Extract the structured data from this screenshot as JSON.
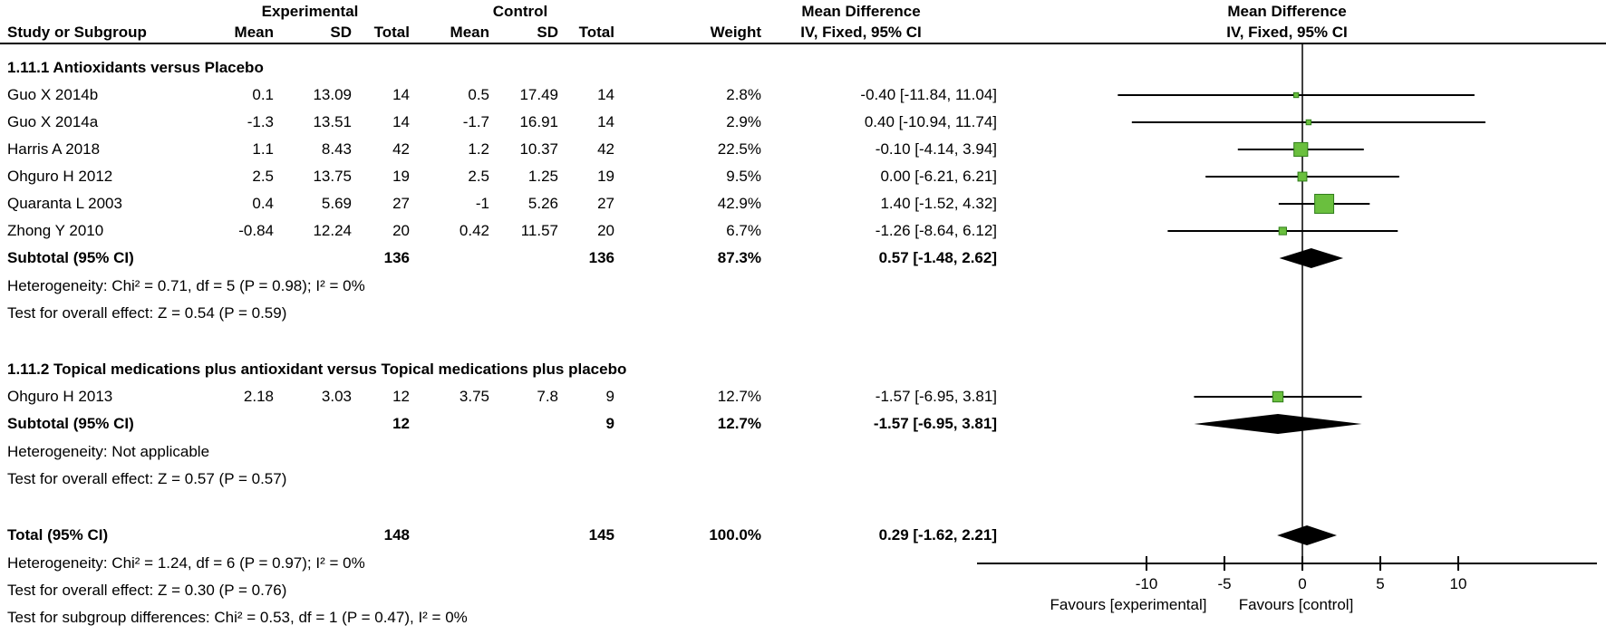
{
  "header": {
    "group_experimental": "Experimental",
    "group_control": "Control",
    "md_left": "Mean Difference",
    "md_right": "Mean Difference",
    "col_study": "Study or Subgroup",
    "col_mean": "Mean",
    "col_sd": "SD",
    "col_total": "Total",
    "col_weight": "Weight",
    "ci_method_left": "IV, Fixed, 95% CI",
    "ci_method_right": "IV, Fixed, 95% CI"
  },
  "sections": [
    {
      "title": "1.11.1 Antioxidants versus Placebo",
      "studies": [
        {
          "name": "Guo X 2014b",
          "mean_e": "0.1",
          "sd_e": "13.09",
          "total_e": "14",
          "mean_c": "0.5",
          "sd_c": "17.49",
          "total_c": "14",
          "weight": "2.8%",
          "ci_text": "-0.40 [-11.84, 11.04]",
          "md": -0.4,
          "lo": -11.84,
          "hi": 11.04,
          "w": 2.8
        },
        {
          "name": "Guo X 2014a",
          "mean_e": "-1.3",
          "sd_e": "13.51",
          "total_e": "14",
          "mean_c": "-1.7",
          "sd_c": "16.91",
          "total_c": "14",
          "weight": "2.9%",
          "ci_text": "0.40 [-10.94, 11.74]",
          "md": 0.4,
          "lo": -10.94,
          "hi": 11.74,
          "w": 2.9
        },
        {
          "name": "Harris A 2018",
          "mean_e": "1.1",
          "sd_e": "8.43",
          "total_e": "42",
          "mean_c": "1.2",
          "sd_c": "10.37",
          "total_c": "42",
          "weight": "22.5%",
          "ci_text": "-0.10 [-4.14, 3.94]",
          "md": -0.1,
          "lo": -4.14,
          "hi": 3.94,
          "w": 22.5
        },
        {
          "name": "Ohguro H 2012",
          "mean_e": "2.5",
          "sd_e": "13.75",
          "total_e": "19",
          "mean_c": "2.5",
          "sd_c": "1.25",
          "total_c": "19",
          "weight": "9.5%",
          "ci_text": "0.00 [-6.21, 6.21]",
          "md": 0.0,
          "lo": -6.21,
          "hi": 6.21,
          "w": 9.5
        },
        {
          "name": "Quaranta L 2003",
          "mean_e": "0.4",
          "sd_e": "5.69",
          "total_e": "27",
          "mean_c": "-1",
          "sd_c": "5.26",
          "total_c": "27",
          "weight": "42.9%",
          "ci_text": "1.40 [-1.52, 4.32]",
          "md": 1.4,
          "lo": -1.52,
          "hi": 4.32,
          "w": 42.9
        },
        {
          "name": "Zhong Y 2010",
          "mean_e": "-0.84",
          "sd_e": "12.24",
          "total_e": "20",
          "mean_c": "0.42",
          "sd_c": "11.57",
          "total_c": "20",
          "weight": "6.7%",
          "ci_text": "-1.26 [-8.64, 6.12]",
          "md": -1.26,
          "lo": -8.64,
          "hi": 6.12,
          "w": 6.7
        }
      ],
      "subtotal": {
        "label": "Subtotal (95% CI)",
        "total_e": "136",
        "total_c": "136",
        "weight": "87.3%",
        "ci_text": "0.57 [-1.48, 2.62]",
        "md": 0.57,
        "lo": -1.48,
        "hi": 2.62
      },
      "heterogeneity": "Heterogeneity: Chi² = 0.71, df = 5 (P = 0.98); I² = 0%",
      "overall_effect": "Test for overall effect: Z = 0.54 (P = 0.59)"
    },
    {
      "title": "1.11.2 Topical medications plus antioxidant versus Topical medications plus placebo",
      "studies": [
        {
          "name": "Ohguro H 2013",
          "mean_e": "2.18",
          "sd_e": "3.03",
          "total_e": "12",
          "mean_c": "3.75",
          "sd_c": "7.8",
          "total_c": "9",
          "weight": "12.7%",
          "ci_text": "-1.57 [-6.95, 3.81]",
          "md": -1.57,
          "lo": -6.95,
          "hi": 3.81,
          "w": 12.7
        }
      ],
      "subtotal": {
        "label": "Subtotal (95% CI)",
        "total_e": "12",
        "total_c": "9",
        "weight": "12.7%",
        "ci_text": "-1.57 [-6.95, 3.81]",
        "md": -1.57,
        "lo": -6.95,
        "hi": 3.81
      },
      "heterogeneity": "Heterogeneity: Not applicable",
      "overall_effect": "Test for overall effect: Z = 0.57 (P = 0.57)"
    }
  ],
  "total": {
    "label": "Total (95% CI)",
    "total_e": "148",
    "total_c": "145",
    "weight": "100.0%",
    "ci_text": "0.29 [-1.62, 2.21]",
    "md": 0.29,
    "lo": -1.62,
    "hi": 2.21
  },
  "footer": [
    "Heterogeneity: Chi² = 1.24, df = 6 (P = 0.97); I² = 0%",
    "Test for overall effect: Z = 0.30 (P = 0.76)",
    "Test for subgroup differences: Chi² = 0.53, df = 1 (P = 0.47), I² = 0%"
  ],
  "plot": {
    "ticks": [
      -10,
      -5,
      0,
      5,
      10
    ],
    "favours_left": "Favours [experimental]",
    "favours_right": "Favours [control]"
  },
  "colors": {
    "marker_fill": "#6abf3e",
    "marker_stroke": "#2f7d19",
    "diamond": "#000000",
    "line": "#000000",
    "text": "#000000"
  },
  "chart_data": {
    "type": "forest",
    "title": "Mean Difference",
    "effect_measure": "IV, Fixed, 95% CI",
    "x_ticks": [
      -10,
      -5,
      0,
      5,
      10
    ],
    "xlim": [
      -21,
      19
    ],
    "xlabel_left": "Favours [experimental]",
    "xlabel_right": "Favours [control]",
    "subgroups": [
      {
        "name": "1.11.1 Antioxidants versus Placebo",
        "studies": [
          {
            "study": "Guo X 2014b",
            "md": -0.4,
            "ci": [
              -11.84,
              11.04
            ],
            "weight_pct": 2.8
          },
          {
            "study": "Guo X 2014a",
            "md": 0.4,
            "ci": [
              -10.94,
              11.74
            ],
            "weight_pct": 2.9
          },
          {
            "study": "Harris A 2018",
            "md": -0.1,
            "ci": [
              -4.14,
              3.94
            ],
            "weight_pct": 22.5
          },
          {
            "study": "Ohguro H 2012",
            "md": 0.0,
            "ci": [
              -6.21,
              6.21
            ],
            "weight_pct": 9.5
          },
          {
            "study": "Quaranta L 2003",
            "md": 1.4,
            "ci": [
              -1.52,
              4.32
            ],
            "weight_pct": 42.9
          },
          {
            "study": "Zhong Y 2010",
            "md": -1.26,
            "ci": [
              -8.64,
              6.12
            ],
            "weight_pct": 6.7
          }
        ],
        "pooled": {
          "md": 0.57,
          "ci": [
            -1.48,
            2.62
          ],
          "weight_pct": 87.3,
          "chi2": 0.71,
          "df": 5,
          "p_het": 0.98,
          "i2_pct": 0,
          "z": 0.54,
          "p_overall": 0.59
        }
      },
      {
        "name": "1.11.2 Topical medications plus antioxidant versus Topical medications plus placebo",
        "studies": [
          {
            "study": "Ohguro H 2013",
            "md": -1.57,
            "ci": [
              -6.95,
              3.81
            ],
            "weight_pct": 12.7
          }
        ],
        "pooled": {
          "md": -1.57,
          "ci": [
            -6.95,
            3.81
          ],
          "weight_pct": 12.7,
          "z": 0.57,
          "p_overall": 0.57
        }
      }
    ],
    "overall": {
      "md": 0.29,
      "ci": [
        -1.62,
        2.21
      ],
      "weight_pct": 100.0,
      "n_e": 148,
      "n_c": 145,
      "chi2": 1.24,
      "df": 6,
      "p_het": 0.97,
      "i2_pct": 0,
      "z": 0.3,
      "p_overall": 0.76,
      "subgroup_diff": {
        "chi2": 0.53,
        "df": 1,
        "p": 0.47,
        "i2_pct": 0
      }
    }
  }
}
